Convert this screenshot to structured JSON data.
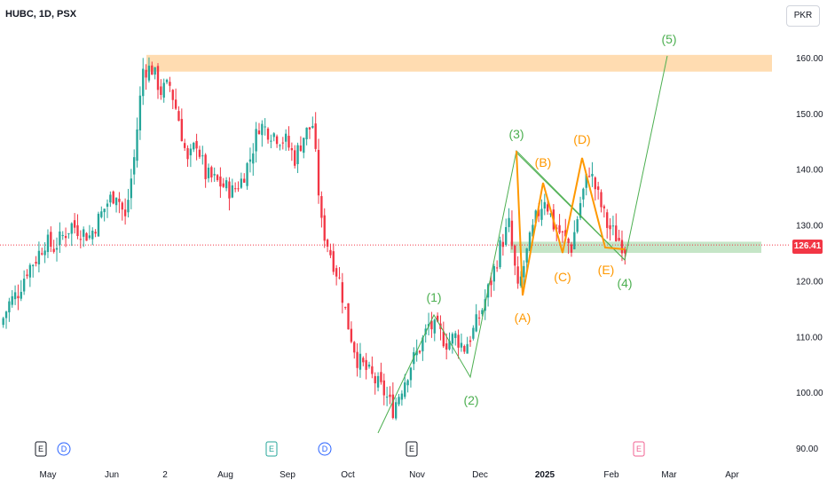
{
  "header": {
    "ticker": "HUBC, 1D, PSX",
    "currency": "PKR"
  },
  "last_price": "126.41",
  "colors": {
    "up": "#26a69a",
    "down": "#f23645",
    "green_wave": "#4caf50",
    "orange_wave": "#ff9800",
    "zone_orange": "#ffd8a8",
    "zone_green": "#b7dfb9",
    "price_line": "#f23645"
  },
  "chart_data": {
    "type": "candlestick",
    "title": "HUBC, 1D, PSX",
    "ylim": [
      88,
      165
    ],
    "y_ticks": [
      "160.00",
      "150.00",
      "140.00",
      "130.00",
      "120.00",
      "110.00",
      "100.00",
      "90.00"
    ],
    "x_ticks": [
      "May",
      "Jun",
      "2",
      "Aug",
      "Sep",
      "Oct",
      "Nov",
      "Dec",
      "2025",
      "Feb",
      "Mar",
      "Apr"
    ],
    "resistance_zone": [
      157.5,
      160.5
    ],
    "support_zone": [
      125,
      127
    ],
    "last_price": 126.41,
    "green_wave": [
      {
        "label": "(1)",
        "value": 114
      },
      {
        "label": "(2)",
        "value": 103
      },
      {
        "label": "(3)",
        "value": 143
      },
      {
        "label": "(4)",
        "value": 124
      },
      {
        "label": "(5)",
        "value": 160
      }
    ],
    "orange_wave": [
      {
        "label": "(A)",
        "value": 117
      },
      {
        "label": "(B)",
        "value": 137.5
      },
      {
        "label": "(C)",
        "value": 125
      },
      {
        "label": "(D)",
        "value": 142.5
      },
      {
        "label": "(E)",
        "value": 125
      }
    ],
    "events": [
      "E",
      "D",
      "E",
      "D",
      "E",
      "E"
    ],
    "close_path": [
      112,
      116,
      118,
      122,
      124,
      127,
      126,
      128,
      130,
      129,
      128,
      131,
      134,
      136,
      131,
      142,
      158,
      158,
      154,
      155,
      149,
      141,
      145,
      139,
      138,
      137,
      136,
      138,
      142,
      148,
      147,
      146,
      145,
      142,
      146,
      148,
      130,
      125,
      120,
      112,
      106,
      104,
      102,
      100,
      97,
      101,
      105,
      108,
      112,
      111,
      109,
      110,
      108,
      111,
      115,
      120,
      126,
      130,
      118,
      125,
      131,
      135,
      130,
      128,
      126,
      134,
      140,
      135,
      130,
      128,
      126
    ]
  }
}
